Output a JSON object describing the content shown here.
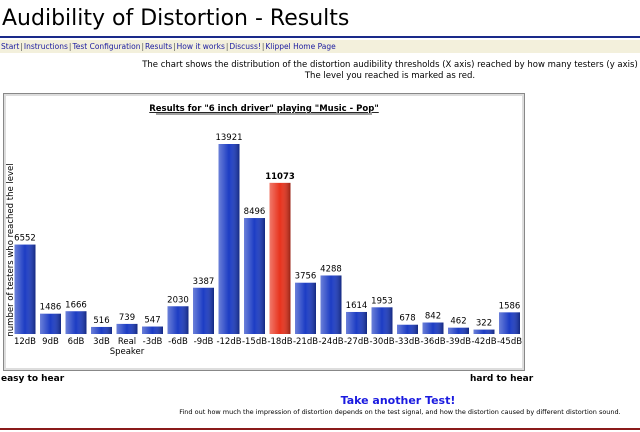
{
  "header": {
    "title": "Audibility of Distortion - Results"
  },
  "nav": [
    "Start",
    "Instructions",
    "Test Configuration",
    "Results",
    "How it works",
    "Discuss!",
    "Klippel Home Page"
  ],
  "description": [
    "The chart shows the distribution of the distortion audibility thresholds (X axis) reached by how many testers (y axis)",
    "The level you reached is marked as red."
  ],
  "chart_data": {
    "type": "bar",
    "title": "Results for \"6 inch driver\" playing \"Music - Pop\"",
    "y_label": "number of testers who reached the level",
    "categories": [
      "12dB",
      "9dB",
      "6dB",
      "3dB",
      "Real Speaker",
      "-3dB",
      "-6dB",
      "-9dB",
      "-12dB",
      "-15dB",
      "-18dB",
      "-21dB",
      "-24dB",
      "-27dB",
      "-30dB",
      "-33dB",
      "-36dB",
      "-39dB",
      "-42dB",
      "-45dB"
    ],
    "values": [
      6552,
      1486,
      1666,
      516,
      739,
      547,
      2030,
      3387,
      13921,
      8496,
      11073,
      3756,
      4288,
      1614,
      1953,
      678,
      842,
      462,
      322,
      1586
    ],
    "color": "#1c3cc4",
    "colors": [
      "#1c3cc4",
      "#1c3cc4",
      "#1c3cc4",
      "#1c3cc4",
      "#1c3cc4",
      "#1c3cc4",
      "#1c3cc4",
      "#1c3cc4",
      "#1c3cc4",
      "#1c3cc4",
      "#e8321c",
      "#1c3cc4",
      "#1c3cc4",
      "#1c3cc4",
      "#1c3cc4",
      "#1c3cc4",
      "#1c3cc4",
      "#1c3cc4",
      "#1c3cc4",
      "#1c3cc4"
    ],
    "x_left_label": "easy to hear",
    "x_right_label": "hard to hear"
  },
  "links": {
    "again": "Take another Test!"
  },
  "footer": "Find out how much the impression of distortion depends on the test signal, and how the distortion caused by different distortion sound."
}
